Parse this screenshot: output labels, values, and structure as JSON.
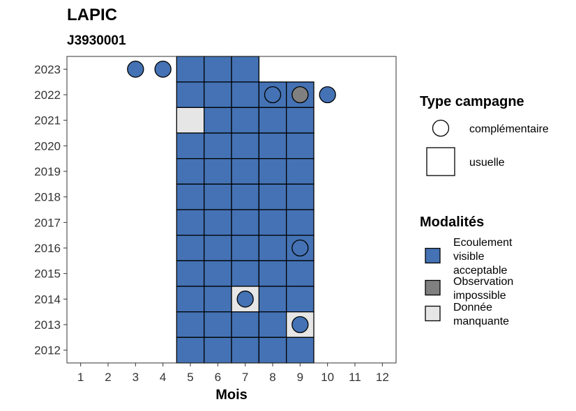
{
  "chart_data": {
    "type": "heatmap",
    "title": "LAPIC",
    "subtitle": "J3930001",
    "xlabel": "Mois",
    "ylabel": "",
    "x_ticks": [
      "1",
      "2",
      "3",
      "4",
      "5",
      "6",
      "7",
      "8",
      "9",
      "10",
      "11",
      "12"
    ],
    "y_ticks": [
      "2012",
      "2013",
      "2014",
      "2015",
      "2016",
      "2017",
      "2018",
      "2019",
      "2020",
      "2021",
      "2022",
      "2023"
    ],
    "xlim": [
      0.5,
      12.5
    ],
    "ylim": [
      2011.5,
      2023.5
    ],
    "grid": false,
    "legend_position": "right",
    "colors": {
      "Ecoulement visible acceptable": "#4472b4",
      "Observation impossible": "#808080",
      "Donnée manquante": "#e6e6e6"
    },
    "legends": {
      "type": {
        "title": "Type campagne",
        "items": [
          {
            "label": "complémentaire",
            "shape": "circle"
          },
          {
            "label": "usuelle",
            "shape": "square"
          }
        ]
      },
      "modalites": {
        "title": "Modalités",
        "items": [
          {
            "lines": [
              "Ecoulement",
              "visible",
              "acceptable"
            ],
            "key": "Ecoulement visible acceptable"
          },
          {
            "lines": [
              "Observation",
              "impossible"
            ],
            "key": "Observation impossible"
          },
          {
            "lines": [
              "Donnée",
              "manquante"
            ],
            "key": "Donnée manquante"
          }
        ]
      }
    },
    "usuelle": [
      {
        "year": 2023,
        "months": [
          5,
          6,
          7
        ],
        "modalite": "Ecoulement visible acceptable"
      },
      {
        "year": 2022,
        "months": [
          5,
          6,
          7,
          8,
          9
        ],
        "modalite": "Ecoulement visible acceptable"
      },
      {
        "year": 2021,
        "months": [
          5
        ],
        "modalite": "Donnée manquante"
      },
      {
        "year": 2021,
        "months": [
          6,
          7,
          8,
          9
        ],
        "modalite": "Ecoulement visible acceptable"
      },
      {
        "year": 2020,
        "months": [
          5,
          6,
          7,
          8,
          9
        ],
        "modalite": "Ecoulement visible acceptable"
      },
      {
        "year": 2019,
        "months": [
          5,
          6,
          7,
          8,
          9
        ],
        "modalite": "Ecoulement visible acceptable"
      },
      {
        "year": 2018,
        "months": [
          5,
          6,
          7,
          8,
          9
        ],
        "modalite": "Ecoulement visible acceptable"
      },
      {
        "year": 2017,
        "months": [
          5,
          6,
          7,
          8,
          9
        ],
        "modalite": "Ecoulement visible acceptable"
      },
      {
        "year": 2016,
        "months": [
          5,
          6,
          7,
          8,
          9
        ],
        "modalite": "Ecoulement visible acceptable"
      },
      {
        "year": 2015,
        "months": [
          5,
          6,
          7,
          8,
          9
        ],
        "modalite": "Ecoulement visible acceptable"
      },
      {
        "year": 2014,
        "months": [
          5,
          6,
          8,
          9
        ],
        "modalite": "Ecoulement visible acceptable"
      },
      {
        "year": 2014,
        "months": [
          7
        ],
        "modalite": "Donnée manquante"
      },
      {
        "year": 2013,
        "months": [
          5,
          6,
          7,
          8
        ],
        "modalite": "Ecoulement visible acceptable"
      },
      {
        "year": 2013,
        "months": [
          9
        ],
        "modalite": "Donnée manquante"
      },
      {
        "year": 2012,
        "months": [
          5,
          6,
          7,
          8,
          9
        ],
        "modalite": "Ecoulement visible acceptable"
      }
    ],
    "complementaire": [
      {
        "year": 2023,
        "month": 3,
        "modalite": "Ecoulement visible acceptable"
      },
      {
        "year": 2023,
        "month": 4,
        "modalite": "Ecoulement visible acceptable"
      },
      {
        "year": 2022,
        "month": 8,
        "modalite": "Ecoulement visible acceptable"
      },
      {
        "year": 2022,
        "month": 9,
        "modalite": "Observation impossible"
      },
      {
        "year": 2022,
        "month": 10,
        "modalite": "Ecoulement visible acceptable"
      },
      {
        "year": 2016,
        "month": 9,
        "modalite": "Ecoulement visible acceptable"
      },
      {
        "year": 2014,
        "month": 7,
        "modalite": "Ecoulement visible acceptable"
      },
      {
        "year": 2013,
        "month": 9,
        "modalite": "Ecoulement visible acceptable"
      }
    ]
  }
}
